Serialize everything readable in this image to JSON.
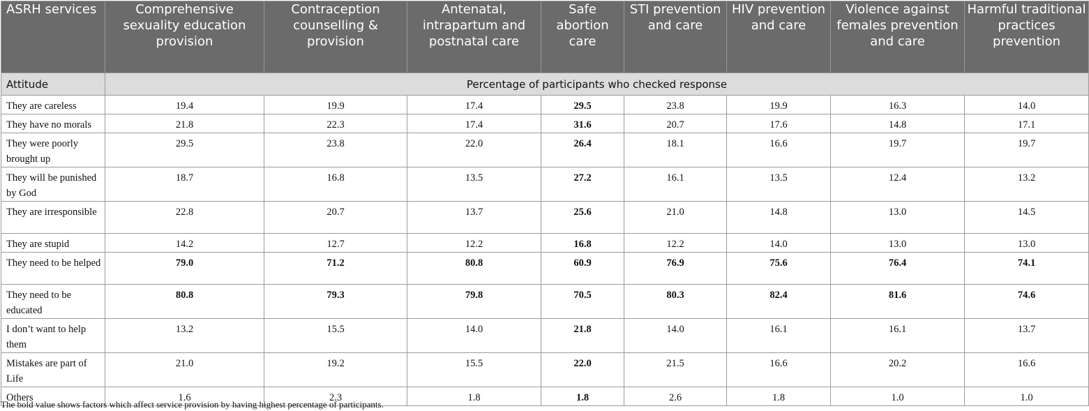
{
  "header": {
    "first": "ASRH services",
    "columns": [
      "Comprehensive sexuality education provision",
      "Contraception counselling & provision",
      "Antenatal, intrapartum and postnatal care",
      "Safe abortion care",
      "STI prevention and care",
      "HIV prevention and care",
      "Violence against females prevention and care",
      "Harmful traditional practices prevention"
    ]
  },
  "subheader": {
    "first": "Attitude",
    "span": "Percentage of participants who checked response"
  },
  "rows": [
    {
      "label": "They are careless",
      "values": [
        "19.4",
        "19.9",
        "17.4",
        "29.5",
        "23.8",
        "19.9",
        "16.3",
        "14.0"
      ],
      "bold": [
        false,
        false,
        false,
        true,
        false,
        false,
        false,
        false
      ]
    },
    {
      "label": "They have no morals",
      "values": [
        "21.8",
        "22.3",
        "17.4",
        "31.6",
        "20.7",
        "17.6",
        "14.8",
        "17.1"
      ],
      "bold": [
        false,
        false,
        false,
        true,
        false,
        false,
        false,
        false
      ]
    },
    {
      "label": "They were poorly brought up",
      "values": [
        "29.5",
        "23.8",
        "22.0",
        "26.4",
        "18.1",
        "16.6",
        "19.7",
        "19.7"
      ],
      "bold": [
        false,
        false,
        false,
        true,
        false,
        false,
        false,
        false
      ]
    },
    {
      "label": "They will be punished by God",
      "values": [
        "18.7",
        "16.8",
        "13.5",
        "27.2",
        "16.1",
        "13.5",
        "12.4",
        "13.2"
      ],
      "bold": [
        false,
        false,
        false,
        true,
        false,
        false,
        false,
        false
      ]
    },
    {
      "label": "They are irresponsible",
      "values": [
        "22.8",
        "20.7",
        "13.7",
        "25.6",
        "21.0",
        "14.8",
        "13.0",
        "14.5"
      ],
      "bold": [
        false,
        false,
        false,
        true,
        false,
        false,
        false,
        false
      ]
    },
    {
      "label": "They are stupid",
      "values": [
        "14.2",
        "12.7",
        "12.2",
        "16.8",
        "12.2",
        "14.0",
        "13.0",
        "13.0"
      ],
      "bold": [
        false,
        false,
        false,
        true,
        false,
        false,
        false,
        false
      ]
    },
    {
      "label": "They need to be helped",
      "values": [
        "79.0",
        "71.2",
        "80.8",
        "60.9",
        "76.9",
        "75.6",
        "76.4",
        "74.1"
      ],
      "bold": [
        true,
        true,
        true,
        true,
        true,
        true,
        true,
        true
      ]
    },
    {
      "label": "They need to be educated",
      "values": [
        "80.8",
        "79.3",
        "79.8",
        "70.5",
        "80.3",
        "82.4",
        "81.6",
        "74.6"
      ],
      "bold": [
        true,
        true,
        true,
        true,
        true,
        true,
        true,
        true
      ]
    },
    {
      "label": "I don’t want to help them",
      "values": [
        "13.2",
        "15.5",
        "14.0",
        "21.8",
        "14.0",
        "16.1",
        "16.1",
        "13.7"
      ],
      "bold": [
        false,
        false,
        false,
        true,
        false,
        false,
        false,
        false
      ]
    },
    {
      "label": "Mistakes are part of Life",
      "values": [
        "21.0",
        "19.2",
        "15.5",
        "22.0",
        "21.5",
        "16.6",
        "20.2",
        "16.6"
      ],
      "bold": [
        false,
        false,
        false,
        true,
        false,
        false,
        false,
        false
      ]
    },
    {
      "label": "Others",
      "values": [
        "1.6",
        "2.3",
        "1.8",
        "1.8",
        "2.6",
        "1.8",
        "1.0",
        "1.0"
      ],
      "bold": [
        false,
        false,
        false,
        true,
        false,
        false,
        false,
        false
      ]
    }
  ],
  "footnote": "The bold value shows factors which affect service provision by having highest percentage of participants."
}
